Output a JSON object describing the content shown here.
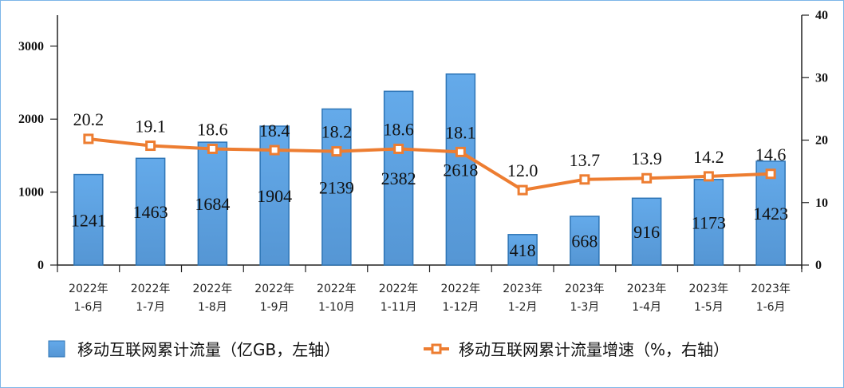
{
  "chart_data": {
    "type": "bar+line",
    "categories": [
      [
        "2022年",
        "1-6月"
      ],
      [
        "2022年",
        "1-7月"
      ],
      [
        "2022年",
        "1-8月"
      ],
      [
        "2022年",
        "1-9月"
      ],
      [
        "2022年",
        "1-10月"
      ],
      [
        "2022年",
        "1-11月"
      ],
      [
        "2022年",
        "1-12月"
      ],
      [
        "2023年",
        "1-2月"
      ],
      [
        "2023年",
        "1-3月"
      ],
      [
        "2023年",
        "1-4月"
      ],
      [
        "2023年",
        "1-5月"
      ],
      [
        "2023年",
        "1-6月"
      ]
    ],
    "series": [
      {
        "name": "移动互联网累计流量（亿GB，左轴）",
        "type": "bar",
        "axis": "left",
        "color": "#5b9bd5",
        "values": [
          1241,
          1463,
          1684,
          1904,
          2139,
          2382,
          2618,
          418,
          668,
          916,
          1173,
          1423
        ]
      },
      {
        "name": "移动互联网累计流量增速（%，右轴）",
        "type": "line",
        "axis": "right",
        "color": "#ed7d31",
        "values": [
          20.2,
          19.1,
          18.6,
          18.4,
          18.2,
          18.6,
          18.1,
          12.0,
          13.7,
          13.9,
          14.2,
          14.6
        ],
        "labels": [
          "20.2",
          "19.1",
          "18.6",
          "18.4",
          "18.2",
          "18.6",
          "18.1",
          "12.0",
          "13.7",
          "13.9",
          "14.2",
          "14.6"
        ]
      }
    ],
    "y_left": {
      "ticks": [
        0,
        1000,
        2000,
        3000
      ],
      "range": [
        0,
        3425
      ]
    },
    "y_right": {
      "ticks": [
        0,
        10,
        20,
        30,
        40
      ],
      "range": [
        0,
        40
      ]
    },
    "grid": false,
    "legend_position": "bottom"
  }
}
